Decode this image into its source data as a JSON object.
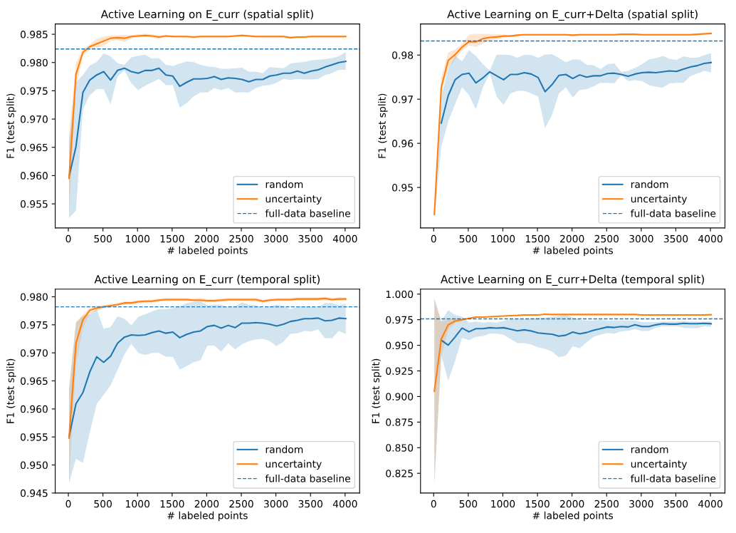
{
  "chart_data": [
    {
      "type": "line",
      "title": "Active Learning on E_curr (spatial split)",
      "xlabel": "# labeled points",
      "ylabel": "F1 (test split)",
      "legend": "bottom right",
      "x": [
        10,
        110,
        210,
        310,
        410,
        510,
        610,
        710,
        810,
        910,
        1010,
        1110,
        1210,
        1310,
        1410,
        1510,
        1610,
        1710,
        1810,
        1910,
        2010,
        2110,
        2210,
        2310,
        2410,
        2510,
        2610,
        2710,
        2810,
        2910,
        3010,
        3110,
        3210,
        3310,
        3410,
        3510,
        3610,
        3710,
        3810,
        3910,
        4010
      ],
      "xlim": [
        -190,
        4210
      ],
      "xticks": [
        0,
        500,
        1000,
        1500,
        2000,
        2500,
        3000,
        3500,
        4000
      ],
      "ylim": [
        0.95074,
        0.98682
      ],
      "yticks": [
        0.955,
        {
          "value": 0.96,
          "label": "0.960"
        },
        0.965,
        {
          "value": 0.97,
          "label": "0.970"
        },
        0.975,
        {
          "value": 0.98,
          "label": "0.980"
        },
        0.985
      ],
      "series": [
        {
          "name": "random",
          "color": "#1f77b4",
          "values": [
            0.9598,
            0.9651,
            0.9747,
            0.9769,
            0.9778,
            0.9784,
            0.9769,
            0.9786,
            0.979,
            0.9784,
            0.9781,
            0.9786,
            0.9786,
            0.979,
            0.9778,
            0.9776,
            0.9758,
            0.9765,
            0.9771,
            0.9771,
            0.9772,
            0.9775,
            0.977,
            0.9773,
            0.9772,
            0.977,
            0.9766,
            0.977,
            0.977,
            0.9776,
            0.9778,
            0.9781,
            0.9781,
            0.9785,
            0.9781,
            0.9785,
            0.9787,
            0.9792,
            0.9796,
            0.98,
            0.9802
          ],
          "lower": [
            0.9525,
            0.9538,
            0.9717,
            0.9742,
            0.9753,
            0.9753,
            0.9726,
            0.9775,
            0.9786,
            0.9763,
            0.9751,
            0.9759,
            0.9765,
            0.9771,
            0.976,
            0.976,
            0.972,
            0.9728,
            0.974,
            0.9747,
            0.9747,
            0.9755,
            0.9751,
            0.9755,
            0.9747,
            0.9747,
            0.9747,
            0.9755,
            0.9759,
            0.976,
            0.9764,
            0.9771,
            0.9769,
            0.9771,
            0.977,
            0.977,
            0.9771,
            0.9778,
            0.9781,
            0.9787,
            0.9787
          ],
          "upper": [
            0.966,
            0.9765,
            0.9778,
            0.9795,
            0.9801,
            0.9816,
            0.9811,
            0.9799,
            0.9796,
            0.9809,
            0.9812,
            0.9814,
            0.9807,
            0.9808,
            0.9796,
            0.9794,
            0.9798,
            0.9802,
            0.9801,
            0.9796,
            0.9793,
            0.9792,
            0.9789,
            0.9789,
            0.979,
            0.9791,
            0.9784,
            0.9784,
            0.9781,
            0.9792,
            0.9791,
            0.979,
            0.9798,
            0.98,
            0.9801,
            0.9804,
            0.9805,
            0.9806,
            0.9808,
            0.9811,
            0.9819
          ]
        },
        {
          "name": "uncertainty",
          "color": "#ff7f0e",
          "values": [
            0.9595,
            0.9779,
            0.9818,
            0.9828,
            0.9833,
            0.9838,
            0.9843,
            0.9844,
            0.9843,
            0.9846,
            0.9847,
            0.9848,
            0.9847,
            0.9845,
            0.9847,
            0.9846,
            0.9846,
            0.9846,
            0.9845,
            0.9846,
            0.9846,
            0.9846,
            0.9846,
            0.9846,
            0.9847,
            0.9848,
            0.9847,
            0.9846,
            0.9846,
            0.9846,
            0.9846,
            0.9846,
            0.9844,
            0.9845,
            0.9845,
            0.9846,
            0.9846,
            0.9846,
            0.9846,
            0.9846,
            0.9846
          ],
          "lower": [
            0.9535,
            0.9755,
            0.9812,
            0.9822,
            0.9826,
            0.9829,
            0.9838,
            0.984,
            0.9836,
            0.9843,
            0.9844,
            0.9845,
            0.9844,
            0.9842,
            0.9845,
            0.9844,
            0.9844,
            0.9844,
            0.9843,
            0.9844,
            0.9844,
            0.9844,
            0.9844,
            0.9844,
            0.9845,
            0.9846,
            0.9845,
            0.9844,
            0.9844,
            0.9844,
            0.9844,
            0.9844,
            0.9842,
            0.9843,
            0.9843,
            0.9844,
            0.9844,
            0.9844,
            0.9844,
            0.9844,
            0.9844
          ],
          "upper": [
            0.9674,
            0.98,
            0.9824,
            0.9832,
            0.9842,
            0.9846,
            0.9848,
            0.9848,
            0.9849,
            0.9849,
            0.985,
            0.9851,
            0.985,
            0.9848,
            0.9849,
            0.9848,
            0.9848,
            0.9848,
            0.9847,
            0.9848,
            0.9848,
            0.9848,
            0.9848,
            0.9848,
            0.9849,
            0.985,
            0.9849,
            0.9848,
            0.9848,
            0.9848,
            0.9848,
            0.9848,
            0.9846,
            0.9847,
            0.9847,
            0.9848,
            0.9848,
            0.9848,
            0.9848,
            0.9848,
            0.9848
          ]
        }
      ],
      "ref_lines": [
        {
          "axis": "y",
          "value": 0.9824,
          "label": "full-data baseline",
          "color": "#1f77b4",
          "line_style": "dashed"
        }
      ]
    },
    {
      "type": "line",
      "title": "Active Learning on E_curr+Delta (spatial split)",
      "xlabel": "# labeled points",
      "ylabel": "F1 (test split)",
      "legend": "bottom right",
      "x": [
        10,
        110,
        210,
        310,
        410,
        510,
        610,
        710,
        810,
        910,
        1010,
        1110,
        1210,
        1310,
        1410,
        1510,
        1610,
        1710,
        1810,
        1910,
        2010,
        2110,
        2210,
        2310,
        2410,
        2510,
        2610,
        2710,
        2810,
        2910,
        3010,
        3110,
        3210,
        3310,
        3410,
        3510,
        3610,
        3710,
        3810,
        3910,
        4010
      ],
      "xlim": [
        -190,
        4210
      ],
      "xticks": [
        0,
        500,
        1000,
        1500,
        2000,
        2500,
        3000,
        3500,
        4000
      ],
      "ylim": [
        0.94083,
        0.98704
      ],
      "yticks": [
        0.95,
        0.96,
        0.97,
        0.98
      ],
      "series": [
        {
          "name": "random",
          "color": "#1f77b4",
          "values": [
            null,
            0.9646,
            0.9708,
            0.9744,
            0.9756,
            0.9759,
            0.9737,
            0.9748,
            0.9762,
            0.9753,
            0.9744,
            0.9756,
            0.9756,
            0.976,
            0.9757,
            0.9749,
            0.9717,
            0.9733,
            0.9754,
            0.9756,
            0.9747,
            0.9755,
            0.975,
            0.9753,
            0.9753,
            0.9758,
            0.9759,
            0.9756,
            0.9752,
            0.9757,
            0.976,
            0.9761,
            0.976,
            0.9762,
            0.9764,
            0.9763,
            0.9768,
            0.9773,
            0.9776,
            0.9781,
            0.9783
          ],
          "lower": [
            0.943,
            0.9592,
            0.9649,
            0.9689,
            0.9727,
            0.9709,
            0.9677,
            0.9726,
            0.9758,
            0.9706,
            0.9687,
            0.9713,
            0.9719,
            0.9719,
            0.9713,
            0.9706,
            0.9635,
            0.9664,
            0.9713,
            0.9727,
            0.9704,
            0.9721,
            0.9723,
            0.9729,
            0.9737,
            0.9737,
            0.9736,
            0.9754,
            0.9741,
            0.9743,
            0.9741,
            0.9732,
            0.9728,
            0.9726,
            0.9736,
            0.9737,
            0.9737,
            0.9752,
            0.9758,
            0.9764,
            0.9761
          ],
          "upper": [
            0.9455,
            0.9706,
            0.9768,
            0.9799,
            0.9786,
            0.9811,
            0.9798,
            0.978,
            0.9765,
            0.9801,
            0.9801,
            0.98,
            0.9794,
            0.9801,
            0.98,
            0.9794,
            0.9801,
            0.9802,
            0.9793,
            0.9784,
            0.979,
            0.979,
            0.9778,
            0.9777,
            0.9768,
            0.9779,
            0.9781,
            0.9762,
            0.9764,
            0.9771,
            0.9779,
            0.979,
            0.9793,
            0.9798,
            0.9791,
            0.9789,
            0.9797,
            0.9794,
            0.9794,
            0.98,
            0.9804
          ]
        },
        {
          "name": "uncertainty",
          "color": "#ff7f0e",
          "values": [
            0.9439,
            0.9727,
            0.9788,
            0.9801,
            0.9818,
            0.983,
            0.983,
            0.9837,
            0.984,
            0.9841,
            0.9843,
            0.9843,
            0.9845,
            0.9846,
            0.9846,
            0.9846,
            0.9846,
            0.9846,
            0.9846,
            0.9846,
            0.9845,
            0.9846,
            0.9846,
            0.9846,
            0.9846,
            0.9846,
            0.9846,
            0.9847,
            0.9847,
            0.9847,
            0.9846,
            0.9846,
            0.9846,
            0.9846,
            0.9846,
            0.9846,
            0.9846,
            0.9846,
            0.9847,
            0.9848,
            0.9849
          ],
          "lower": [
            0.943,
            0.9715,
            0.977,
            0.979,
            0.981,
            0.9822,
            0.9818,
            0.9826,
            0.9833,
            0.9836,
            0.9839,
            0.9841,
            0.9843,
            0.9844,
            0.9844,
            0.9844,
            0.9844,
            0.9844,
            0.9844,
            0.9844,
            0.9843,
            0.9844,
            0.9844,
            0.9844,
            0.9844,
            0.9844,
            0.9844,
            0.9845,
            0.9845,
            0.9845,
            0.9844,
            0.9844,
            0.9844,
            0.9844,
            0.9844,
            0.9844,
            0.9844,
            0.9844,
            0.9845,
            0.9846,
            0.9847
          ],
          "upper": [
            0.945,
            0.975,
            0.9806,
            0.9812,
            0.9826,
            0.9846,
            0.9848,
            0.9848,
            0.9848,
            0.9847,
            0.9847,
            0.9845,
            0.9847,
            0.9848,
            0.9848,
            0.9848,
            0.9848,
            0.9848,
            0.9848,
            0.9848,
            0.9847,
            0.9848,
            0.9848,
            0.9848,
            0.9848,
            0.9848,
            0.9848,
            0.9849,
            0.9849,
            0.9849,
            0.9848,
            0.9848,
            0.9848,
            0.9848,
            0.9848,
            0.9848,
            0.9848,
            0.9848,
            0.9849,
            0.985,
            0.9851
          ]
        }
      ],
      "ref_lines": [
        {
          "axis": "y",
          "value": 0.9832,
          "label": "full-data baseline",
          "color": "#1f77b4",
          "line_style": "dashed"
        }
      ]
    },
    {
      "type": "line",
      "title": "Active Learning on E_curr (temporal split)",
      "xlabel": "# labeled points",
      "ylabel": "F1 (test split)",
      "legend": "bottom right",
      "x": [
        10,
        110,
        210,
        310,
        410,
        510,
        610,
        710,
        810,
        910,
        1010,
        1110,
        1210,
        1310,
        1410,
        1510,
        1610,
        1710,
        1810,
        1910,
        2010,
        2110,
        2210,
        2310,
        2410,
        2510,
        2610,
        2710,
        2810,
        2910,
        3010,
        3110,
        3210,
        3310,
        3410,
        3510,
        3610,
        3710,
        3810,
        3910,
        4010
      ],
      "xlim": [
        -190,
        4210
      ],
      "xticks": [
        0,
        500,
        1000,
        1500,
        2000,
        2500,
        3000,
        3500,
        4000
      ],
      "ylim": [
        0.945,
        0.98137
      ],
      "yticks": [
        0.945,
        {
          "value": 0.95,
          "label": "0.950"
        },
        0.955,
        {
          "value": 0.96,
          "label": "0.960"
        },
        0.965,
        {
          "value": 0.97,
          "label": "0.970"
        },
        0.975,
        {
          "value": 0.98,
          "label": "0.980"
        }
      ],
      "series": [
        {
          "name": "random",
          "color": "#1f77b4",
          "values": [
            0.955,
            0.9609,
            0.9629,
            0.9666,
            0.9693,
            0.9683,
            0.9694,
            0.9717,
            0.9728,
            0.9732,
            0.9731,
            0.9732,
            0.9736,
            0.9739,
            0.9735,
            0.9737,
            0.9727,
            0.9733,
            0.9737,
            0.9739,
            0.9747,
            0.9749,
            0.9744,
            0.9749,
            0.9745,
            0.9753,
            0.9753,
            0.9754,
            0.9753,
            0.9751,
            0.9748,
            0.9751,
            0.9756,
            0.9758,
            0.9761,
            0.9761,
            0.9762,
            0.9757,
            0.9758,
            0.9762,
            0.9761
          ],
          "lower": [
            0.9468,
            0.9511,
            0.9504,
            0.9558,
            0.9609,
            0.9625,
            0.9642,
            0.9669,
            0.9697,
            0.9716,
            0.97,
            0.9696,
            0.97,
            0.97,
            0.9693,
            0.9693,
            0.967,
            0.9676,
            0.9683,
            0.9687,
            0.9713,
            0.9713,
            0.9702,
            0.9717,
            0.9706,
            0.9715,
            0.9721,
            0.9724,
            0.9725,
            0.9721,
            0.9712,
            0.972,
            0.9734,
            0.9735,
            0.9739,
            0.9738,
            0.9742,
            0.9726,
            0.9726,
            0.9739,
            0.9734
          ],
          "upper": [
            0.9635,
            0.9754,
            0.9766,
            0.9769,
            0.9778,
            0.9743,
            0.9746,
            0.9765,
            0.9761,
            0.9749,
            0.9764,
            0.9769,
            0.9774,
            0.9778,
            0.9778,
            0.978,
            0.9783,
            0.9789,
            0.9791,
            0.9791,
            0.9785,
            0.9786,
            0.9786,
            0.9781,
            0.9783,
            0.979,
            0.9786,
            0.9785,
            0.978,
            0.9783,
            0.9786,
            0.9783,
            0.9778,
            0.9782,
            0.9783,
            0.9782,
            0.9781,
            0.9789,
            0.9789,
            0.9785,
            0.9788
          ]
        },
        {
          "name": "uncertainty",
          "color": "#ff7f0e",
          "values": [
            0.9548,
            0.9717,
            0.9759,
            0.9776,
            0.978,
            0.9782,
            0.9784,
            0.9786,
            0.9789,
            0.9789,
            0.9791,
            0.9792,
            0.9792,
            0.9794,
            0.9795,
            0.9795,
            0.9795,
            0.9795,
            0.9794,
            0.9794,
            0.9793,
            0.9793,
            0.9794,
            0.9795,
            0.9795,
            0.9795,
            0.9795,
            0.9795,
            0.9792,
            0.9794,
            0.9795,
            0.9795,
            0.9795,
            0.9796,
            0.9796,
            0.9796,
            0.9796,
            0.9797,
            0.9795,
            0.9796,
            0.9796
          ],
          "lower": [
            0.947,
            0.968,
            0.9745,
            0.977,
            0.9775,
            0.9779,
            0.9781,
            0.9783,
            0.9786,
            0.9786,
            0.9788,
            0.9789,
            0.9789,
            0.9791,
            0.9792,
            0.9792,
            0.9792,
            0.9792,
            0.9791,
            0.979,
            0.979,
            0.979,
            0.9791,
            0.9792,
            0.9792,
            0.9792,
            0.9792,
            0.9792,
            0.9789,
            0.9791,
            0.9792,
            0.9792,
            0.9792,
            0.9793,
            0.9793,
            0.9793,
            0.9793,
            0.9794,
            0.9792,
            0.9793,
            0.9793
          ],
          "upper": [
            0.9635,
            0.9755,
            0.9768,
            0.9779,
            0.9784,
            0.9785,
            0.9787,
            0.9789,
            0.9792,
            0.9792,
            0.9794,
            0.9795,
            0.9795,
            0.9797,
            0.9798,
            0.9798,
            0.9798,
            0.9798,
            0.9797,
            0.9798,
            0.9796,
            0.9796,
            0.9797,
            0.9798,
            0.9798,
            0.9798,
            0.9798,
            0.9798,
            0.9795,
            0.9797,
            0.9798,
            0.9798,
            0.9798,
            0.9799,
            0.9799,
            0.9799,
            0.9799,
            0.98,
            0.9798,
            0.9799,
            0.9799
          ]
        }
      ],
      "ref_lines": [
        {
          "axis": "y",
          "value": 0.9782,
          "label": "full-data baseline",
          "color": "#1f77b4",
          "line_style": "dashed"
        }
      ]
    },
    {
      "type": "line",
      "title": "Active Learning on E_curr+Delta (temporal split)",
      "xlabel": "# labeled points",
      "ylabel": "F1 (test split)",
      "legend": "bottom right",
      "x": [
        10,
        110,
        210,
        310,
        410,
        510,
        610,
        710,
        810,
        910,
        1010,
        1110,
        1210,
        1310,
        1410,
        1510,
        1610,
        1710,
        1810,
        1910,
        2010,
        2110,
        2210,
        2310,
        2410,
        2510,
        2610,
        2710,
        2810,
        2910,
        3010,
        3110,
        3210,
        3310,
        3410,
        3510,
        3610,
        3710,
        3810,
        3910,
        4010
      ],
      "xlim": [
        -190,
        4210
      ],
      "xticks": [
        0,
        500,
        1000,
        1500,
        2000,
        2500,
        3000,
        3500,
        4000
      ],
      "ylim": [
        0.80572,
        1.0049
      ],
      "yticks": [
        0.825,
        {
          "value": 0.85,
          "label": "0.850"
        },
        0.875,
        {
          "value": 0.9,
          "label": "0.900"
        },
        0.925,
        {
          "value": 0.95,
          "label": "0.950"
        },
        0.975,
        {
          "value": 1.0,
          "label": "1.000"
        }
      ],
      "series": [
        {
          "name": "random",
          "color": "#1f77b4",
          "values": [
            null,
            0.955,
            0.9501,
            0.9582,
            0.9668,
            0.9632,
            0.9662,
            0.9662,
            0.9672,
            0.9668,
            0.9672,
            0.9657,
            0.9642,
            0.9651,
            0.964,
            0.9621,
            0.9614,
            0.9608,
            0.9589,
            0.9599,
            0.9629,
            0.9612,
            0.9625,
            0.9647,
            0.9662,
            0.9679,
            0.9674,
            0.9683,
            0.9679,
            0.97,
            0.9683,
            0.9683,
            0.97,
            0.9711,
            0.9707,
            0.9707,
            0.9715,
            0.9711,
            0.9711,
            0.9715,
            0.9711
          ],
          "lower": [
            0.8147,
            0.94,
            0.9154,
            0.9347,
            0.9572,
            0.955,
            0.9582,
            0.9589,
            0.9614,
            0.9614,
            0.9604,
            0.9561,
            0.9522,
            0.9522,
            0.9507,
            0.948,
            0.9465,
            0.9439,
            0.9383,
            0.94,
            0.949,
            0.9471,
            0.9529,
            0.9582,
            0.9604,
            0.9621,
            0.9614,
            0.9636,
            0.9642,
            0.9657,
            0.964,
            0.964,
            0.9672,
            0.9685,
            0.9685,
            0.9685,
            0.9672,
            0.9668,
            0.9668,
            0.9685,
            0.9679
          ],
          "upper": [
            0.9957,
            0.9732,
            0.9846,
            0.9797,
            0.9779,
            0.9722,
            0.9732,
            0.9722,
            0.9726,
            0.9722,
            0.9739,
            0.9754,
            0.9754,
            0.9754,
            0.9764,
            0.9771,
            0.9771,
            0.9779,
            0.9786,
            0.9797,
            0.9771,
            0.9749,
            0.9743,
            0.9743,
            0.9749,
            0.9743,
            0.9743,
            0.9743,
            0.9743,
            0.9743,
            0.9726,
            0.9726,
            0.9726,
            0.9732,
            0.9732,
            0.9732,
            0.9737,
            0.9732,
            0.9732,
            0.9732,
            0.9732
          ]
        },
        {
          "name": "uncertainty",
          "color": "#ff7f0e",
          "values": [
            0.9051,
            0.9561,
            0.97,
            0.9737,
            0.9749,
            0.9764,
            0.9775,
            0.9775,
            0.9779,
            0.9782,
            0.9786,
            0.979,
            0.9792,
            0.9797,
            0.9797,
            0.9797,
            0.9803,
            0.9801,
            0.9801,
            0.9801,
            0.9801,
            0.9801,
            0.9801,
            0.9801,
            0.9801,
            0.9801,
            0.9801,
            0.9801,
            0.9801,
            0.9801,
            0.9797,
            0.9797,
            0.9797,
            0.9797,
            0.9797,
            0.9797,
            0.9797,
            0.9797,
            0.9797,
            0.9797,
            0.9799
          ],
          "lower": [
            0.8147,
            0.939,
            0.965,
            0.972,
            0.9735,
            null,
            null,
            null,
            null,
            null,
            null,
            null,
            null,
            null,
            null,
            null,
            null,
            null,
            null,
            null,
            null,
            null,
            null,
            null,
            null,
            null,
            null,
            null,
            null,
            null,
            null,
            null,
            null,
            null,
            null,
            null,
            null,
            null,
            null,
            null,
            null
          ],
          "upper": [
            0.9957,
            0.9732,
            0.975,
            0.976,
            0.9765,
            null,
            null,
            null,
            null,
            null,
            null,
            null,
            null,
            null,
            null,
            null,
            null,
            null,
            null,
            null,
            null,
            null,
            null,
            null,
            null,
            null,
            null,
            null,
            null,
            null,
            null,
            null,
            null,
            null,
            null,
            null,
            null,
            null,
            null,
            null,
            null
          ]
        }
      ],
      "ref_lines": [
        {
          "axis": "y",
          "value": 0.9758,
          "label": "full-data baseline",
          "color": "#1f77b4",
          "line_style": "dashed"
        }
      ]
    }
  ]
}
